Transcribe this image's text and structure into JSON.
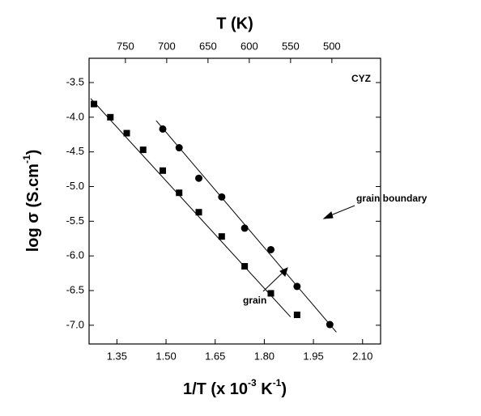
{
  "chart_data": {
    "type": "scatter",
    "xlabel": [
      "1/T (x 10",
      "-3",
      " K",
      "-1",
      ")"
    ],
    "ylabel": [
      "log σ (S.cm",
      "-1",
      ")"
    ],
    "x2label": "T (K)",
    "annotations": {
      "sample": "CYZ",
      "boundary": "grain boundary",
      "grain": "grain"
    },
    "xlim": [
      1.265,
      2.155
    ],
    "xticks": [
      1.35,
      {
        "value": 1.5,
        "label": "1.50"
      },
      1.65,
      {
        "value": 1.8,
        "label": "1.80"
      },
      1.95,
      {
        "value": 2.1,
        "label": "2.10"
      }
    ],
    "x2lim": [
      794,
      441
    ],
    "x2ticks": [
      750,
      700,
      650,
      600,
      550,
      500
    ],
    "ylim": [
      -7.27,
      -3.15
    ],
    "yticks": [
      {
        "value": -3.5,
        "label": "-3.5"
      },
      {
        "value": -4,
        "label": "-4.0"
      },
      {
        "value": -4.5,
        "label": "-4.5"
      },
      {
        "value": -5,
        "label": "-5.0"
      },
      {
        "value": -5.5,
        "label": "-5.5"
      },
      {
        "value": -6,
        "label": "-6.0"
      },
      {
        "value": -6.5,
        "label": "-6.5"
      },
      {
        "value": -7,
        "label": "-7.0"
      }
    ],
    "series": [
      {
        "marker": "square",
        "color": "#000000",
        "x": [
          1.28,
          1.33,
          1.38,
          1.43,
          1.49,
          1.54,
          1.6,
          1.67,
          1.74,
          1.82,
          1.9
        ],
        "values": [
          -3.81,
          -4.0,
          -4.23,
          -4.47,
          -4.77,
          -5.09,
          -5.37,
          -5.72,
          -6.15,
          -6.54,
          -6.85
        ],
        "fit_x": [
          1.27,
          1.88
        ],
        "fit_values": [
          -3.73,
          -6.88
        ]
      },
      {
        "marker": "circle",
        "color": "#000000",
        "x": [
          1.49,
          1.54,
          1.6,
          1.67,
          1.74,
          1.82,
          1.9,
          2.0
        ],
        "values": [
          -4.17,
          -4.44,
          -4.88,
          -5.15,
          -5.6,
          -5.91,
          -6.44,
          -6.99
        ],
        "fit_x": [
          1.47,
          2.02
        ],
        "fit_values": [
          -4.05,
          -7.1
        ]
      }
    ]
  }
}
